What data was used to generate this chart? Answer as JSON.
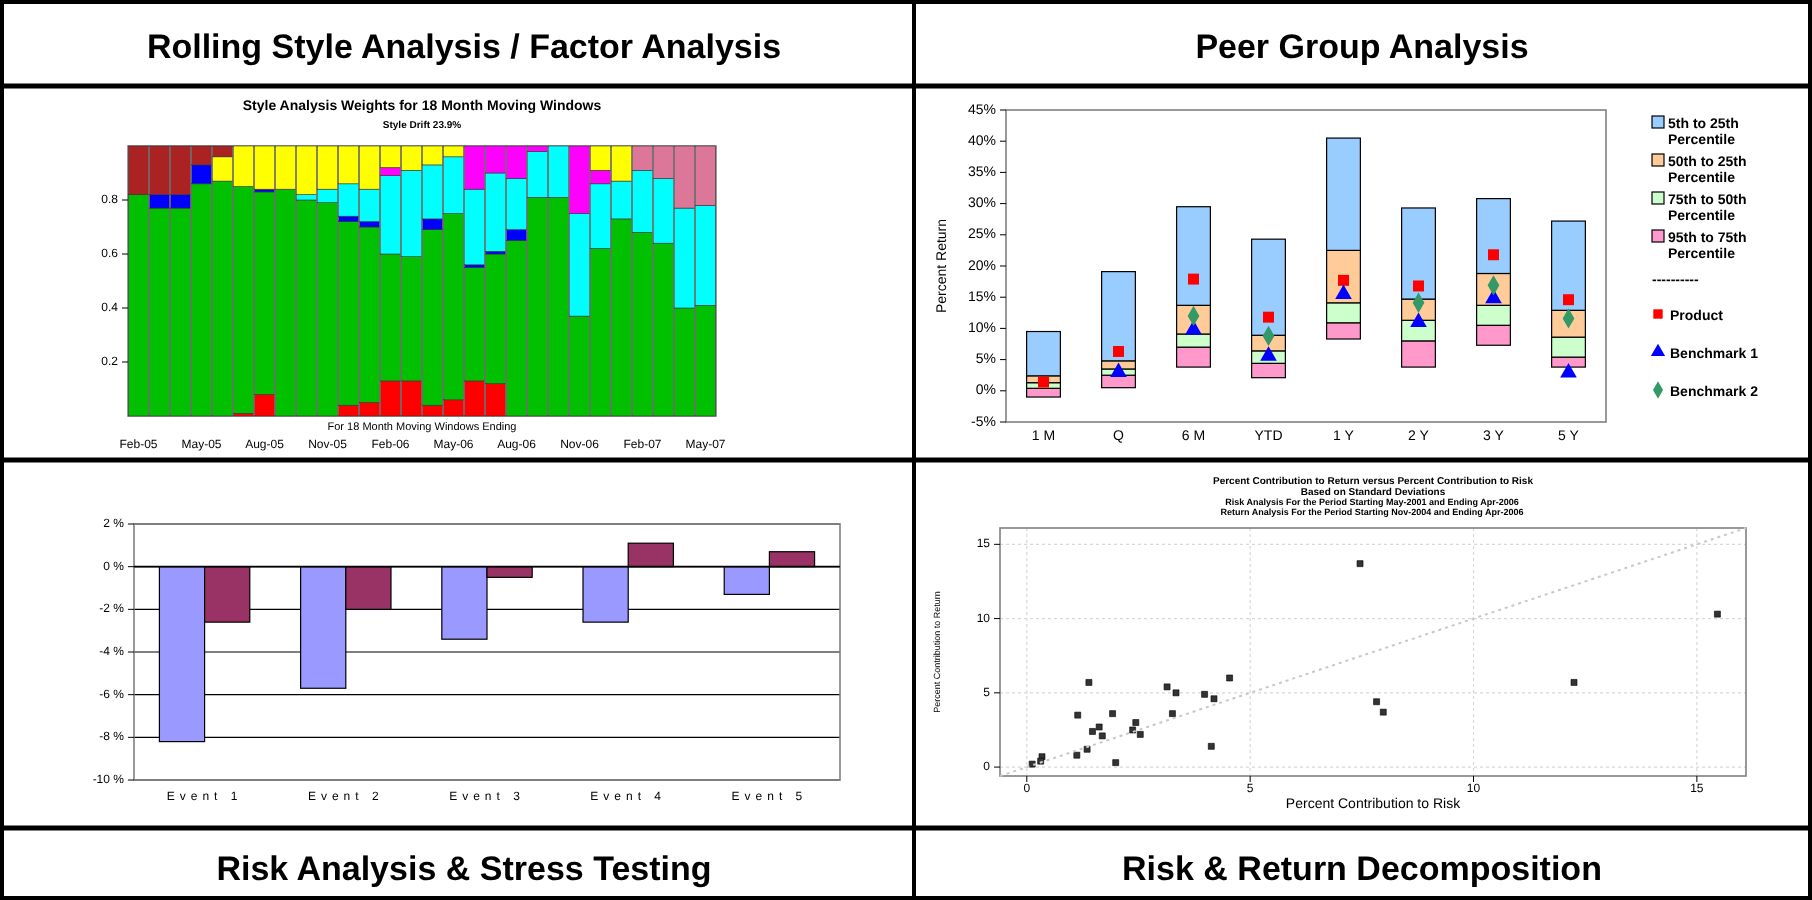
{
  "chart_data": [
    {
      "type": "bar",
      "stacked": true,
      "title": "Style Analysis Weights for 18 Month Moving Windows",
      "subtitle": "Style Drift 23.9%",
      "xlabel": "For 18 Month Moving Windows Ending",
      "annotations": [
        "Rolling Style Analysis / Factor Analysis"
      ],
      "categories": [
        "Feb-05",
        null,
        null,
        "May-05",
        null,
        null,
        "Aug-05",
        null,
        null,
        "Nov-05",
        null,
        null,
        "Feb-06",
        null,
        null,
        "May-06",
        null,
        null,
        "Aug-06",
        null,
        null,
        "Nov-06",
        null,
        null,
        "Feb-07",
        null,
        null,
        "May-07"
      ],
      "ylim": [
        0,
        1
      ],
      "yticks": [
        0.2,
        0.4,
        0.6,
        0.8
      ],
      "series": [
        {
          "color": "#ff0000",
          "values": [
            0,
            0,
            0,
            0,
            0,
            0.01,
            0.08,
            0,
            0,
            0,
            0.04,
            0.05,
            0.13,
            0.13,
            0.04,
            0.06,
            0.13,
            0.12,
            0,
            0,
            0,
            0,
            0,
            0,
            0,
            0,
            0,
            0
          ]
        },
        {
          "color": "#00c000",
          "values": [
            0.82,
            0.77,
            0.77,
            0.86,
            0.87,
            0.84,
            0.75,
            0.84,
            0.8,
            0.79,
            0.68,
            0.65,
            0.47,
            0.46,
            0.65,
            0.69,
            0.42,
            0.48,
            0.65,
            0.81,
            0.81,
            0.37,
            0.62,
            0.73,
            0.68,
            0.64,
            0.4,
            0.41
          ]
        },
        {
          "color": "#0000ff",
          "values": [
            0,
            0.05,
            0.05,
            0.07,
            0,
            0,
            0.01,
            0,
            0,
            0,
            0.02,
            0.02,
            0,
            0,
            0.04,
            0,
            0.01,
            0.01,
            0.04,
            0,
            0,
            0,
            0,
            0,
            0,
            0,
            0,
            0
          ]
        },
        {
          "color": "#00ffff",
          "values": [
            0,
            0,
            0,
            0,
            0,
            0,
            0,
            0,
            0.02,
            0.05,
            0.12,
            0.12,
            0.29,
            0.32,
            0.2,
            0.21,
            0.28,
            0.29,
            0.19,
            0.17,
            0.19,
            0.38,
            0.24,
            0.14,
            0.23,
            0.24,
            0.37,
            0.37
          ]
        },
        {
          "color": "#ff00ff",
          "values": [
            0,
            0,
            0,
            0,
            0,
            0,
            0,
            0,
            0,
            0,
            0,
            0,
            0.03,
            0,
            0,
            0,
            0.16,
            0.1,
            0.12,
            0.02,
            0,
            0.25,
            0.05,
            0,
            0,
            0,
            0,
            0
          ]
        },
        {
          "color": "#ffff00",
          "values": [
            0,
            0,
            0,
            0,
            0.09,
            0.15,
            0.16,
            0.16,
            0.18,
            0.16,
            0.14,
            0.16,
            0.08,
            0.09,
            0.07,
            0.04,
            0,
            0,
            0,
            0,
            0,
            0,
            0.09,
            0.13,
            0,
            0,
            0,
            0
          ]
        },
        {
          "color": "#dd7799",
          "values": [
            0,
            0,
            0,
            0,
            0,
            0,
            0,
            0,
            0,
            0,
            0,
            0,
            0,
            0,
            0,
            0,
            0,
            0,
            0,
            0,
            0,
            0,
            0,
            0,
            0.09,
            0.12,
            0.23,
            0.22
          ]
        },
        {
          "color": "#aa2222",
          "values": [
            0.18,
            0.18,
            0.18,
            0.07,
            0.04,
            0,
            0,
            0,
            0,
            0,
            0,
            0,
            0,
            0,
            0,
            0,
            0,
            0,
            0,
            0,
            0,
            0,
            0,
            0,
            0,
            0,
            0,
            0
          ]
        }
      ]
    },
    {
      "type": "bar",
      "title": "Peer Group Analysis",
      "ylabel": "Percent Return",
      "annotations": [
        "----------"
      ],
      "legend": "right",
      "categories": [
        "1 M",
        "Q",
        "6 M",
        "YTD",
        "1 Y",
        "2 Y",
        "3 Y",
        "5 Y"
      ],
      "ylim": [
        -5,
        45
      ],
      "yticks": [
        {
          "value": -5,
          "label": "-5%"
        },
        {
          "value": 0,
          "label": "0%"
        },
        {
          "value": 5,
          "label": "5%"
        },
        {
          "value": 10,
          "label": "10%"
        },
        {
          "value": 15,
          "label": "15%"
        },
        {
          "value": 20,
          "label": "20%"
        },
        {
          "value": 25,
          "label": "25%"
        },
        {
          "value": 30,
          "label": "30%"
        },
        {
          "value": 35,
          "label": "35%"
        },
        {
          "value": 40,
          "label": "40%"
        },
        {
          "value": 45,
          "label": "45%"
        }
      ],
      "series": [
        {
          "name": "95th to 75th Percentile",
          "color": "#ff99cc",
          "base": [
            -1,
            0.5,
            3.8,
            2.1,
            8.3,
            3.8,
            7.3,
            3.8
          ],
          "values": [
            1.4,
            2,
            3.2,
            2.3,
            2.6,
            4.2,
            3.2,
            1.6
          ]
        },
        {
          "name": "75th to 50th Percentile",
          "color": "#ccffcc",
          "base": [
            0.4,
            2.5,
            7,
            4.4,
            10.9,
            8,
            10.5,
            5.4
          ],
          "values": [
            0.9,
            1,
            2.1,
            2,
            3.2,
            3.3,
            3.2,
            3.2
          ]
        },
        {
          "name": "50th to 25th Percentile",
          "color": "#ffcc99",
          "base": [
            1.3,
            3.5,
            9.1,
            6.4,
            14.1,
            11.3,
            13.7,
            8.6
          ],
          "values": [
            1.1,
            1.3,
            4.6,
            2.5,
            8.4,
            3.4,
            5.1,
            4.3
          ]
        },
        {
          "name": "5th to 25th Percentile",
          "color": "#99ccff",
          "base": [
            2.4,
            4.8,
            13.7,
            8.9,
            22.5,
            14.7,
            18.8,
            12.9
          ],
          "values": [
            7.1,
            14.3,
            15.8,
            15.4,
            18,
            14.6,
            12,
            14.3
          ]
        },
        {
          "name": "Product",
          "type": "scatter",
          "marker": "square",
          "color": "#ff0000",
          "x": [
            "1 M",
            "Q",
            "6 M",
            "YTD",
            "1 Y",
            "2 Y",
            "3 Y",
            "5 Y"
          ],
          "values": [
            1.4,
            6.3,
            17.9,
            11.8,
            17.7,
            16.8,
            21.8,
            14.6
          ]
        },
        {
          "name": "Benchmark 1",
          "type": "scatter",
          "marker": "triangle",
          "color": "#0000ff",
          "x": [
            "1 M",
            "Q",
            "6 M",
            "YTD",
            "1 Y",
            "2 Y",
            "3 Y",
            "5 Y"
          ],
          "values": [
            null,
            3,
            9.8,
            5.6,
            15.5,
            11,
            14.8,
            2.9
          ]
        },
        {
          "name": "Benchmark 2",
          "type": "scatter",
          "marker": "diamond",
          "color": "#339966",
          "x": [
            "1 M",
            "Q",
            "6 M",
            "YTD",
            "1 Y",
            "2 Y",
            "3 Y",
            "5 Y"
          ],
          "values": [
            null,
            null,
            12,
            8.8,
            null,
            14.1,
            16.9,
            11.6
          ]
        }
      ]
    },
    {
      "type": "bar",
      "title": "Risk Analysis & Stress Testing",
      "grid": "y",
      "categories": [
        "Event 1",
        "Event 2",
        "Event 3",
        "Event 4",
        "Event 5"
      ],
      "ylim": [
        -10,
        2
      ],
      "yticks": [
        {
          "value": -10,
          "label": "-10 %"
        },
        {
          "value": -8,
          "label": "-8 %"
        },
        {
          "value": -6,
          "label": "-6 %"
        },
        {
          "value": -4,
          "label": "-4 %"
        },
        {
          "value": -2,
          "label": "-2 %"
        },
        {
          "value": 0,
          "label": "0 %"
        },
        {
          "value": 2,
          "label": "2 %"
        }
      ],
      "series": [
        {
          "color": "#9999ff",
          "values": [
            -8.2,
            -5.7,
            -3.4,
            -2.6,
            -1.3
          ]
        },
        {
          "color": "#993366",
          "values": [
            -2.6,
            -2,
            -0.5,
            1.1,
            0.7
          ]
        }
      ]
    },
    {
      "type": "scatter",
      "title": "Percent Contribution to Return versus Percent Contribution to Risk",
      "subtitle": "Based on Standard Deviations",
      "xlabel": "Percent Contribution to Risk",
      "ylabel": "Percent Contribution to Return",
      "grid": true,
      "annotations": [
        "Risk & Return Decomposition",
        "Risk Analysis For the Period Starting May-2001 and Ending Apr-2006",
        "Return Analysis For the Period Starting Nov-2004 and Ending Apr-2006"
      ],
      "xlim": [
        -0.6,
        16.1
      ],
      "xticks": [
        0,
        5,
        10,
        15
      ],
      "ylim": [
        -0.6,
        16.1
      ],
      "yticks": [
        0,
        5,
        10,
        15
      ],
      "series": [
        {
          "type": "scatter",
          "marker": "square",
          "color": "#333333",
          "x": [
            7.46,
            15.46,
            12.25,
            7.83,
            7.98,
            4.54,
            1.39,
            3.14,
            3.34,
            3.98,
            4.19,
            1.14,
            1.92,
            3.26,
            2.44,
            1.62,
            2.37,
            1.47,
            2.54,
            1.69,
            4.13,
            1.35,
            1.12,
            0.34,
            0.31,
            0.12,
            1.99
          ],
          "values": [
            13.7,
            10.3,
            5.7,
            4.4,
            3.7,
            6,
            5.7,
            5.4,
            5,
            4.9,
            4.6,
            3.5,
            3.6,
            3.6,
            3,
            2.7,
            2.5,
            2.4,
            2.2,
            2.1,
            1.4,
            1.2,
            0.8,
            0.7,
            0.4,
            0.2,
            0.3
          ]
        },
        {
          "type": "line",
          "color": "#c8c8c8",
          "line_style": "dotted",
          "marker": "none",
          "x": [
            -0.6,
            16.1
          ],
          "values": [
            -0.6,
            16.1
          ]
        }
      ]
    }
  ]
}
